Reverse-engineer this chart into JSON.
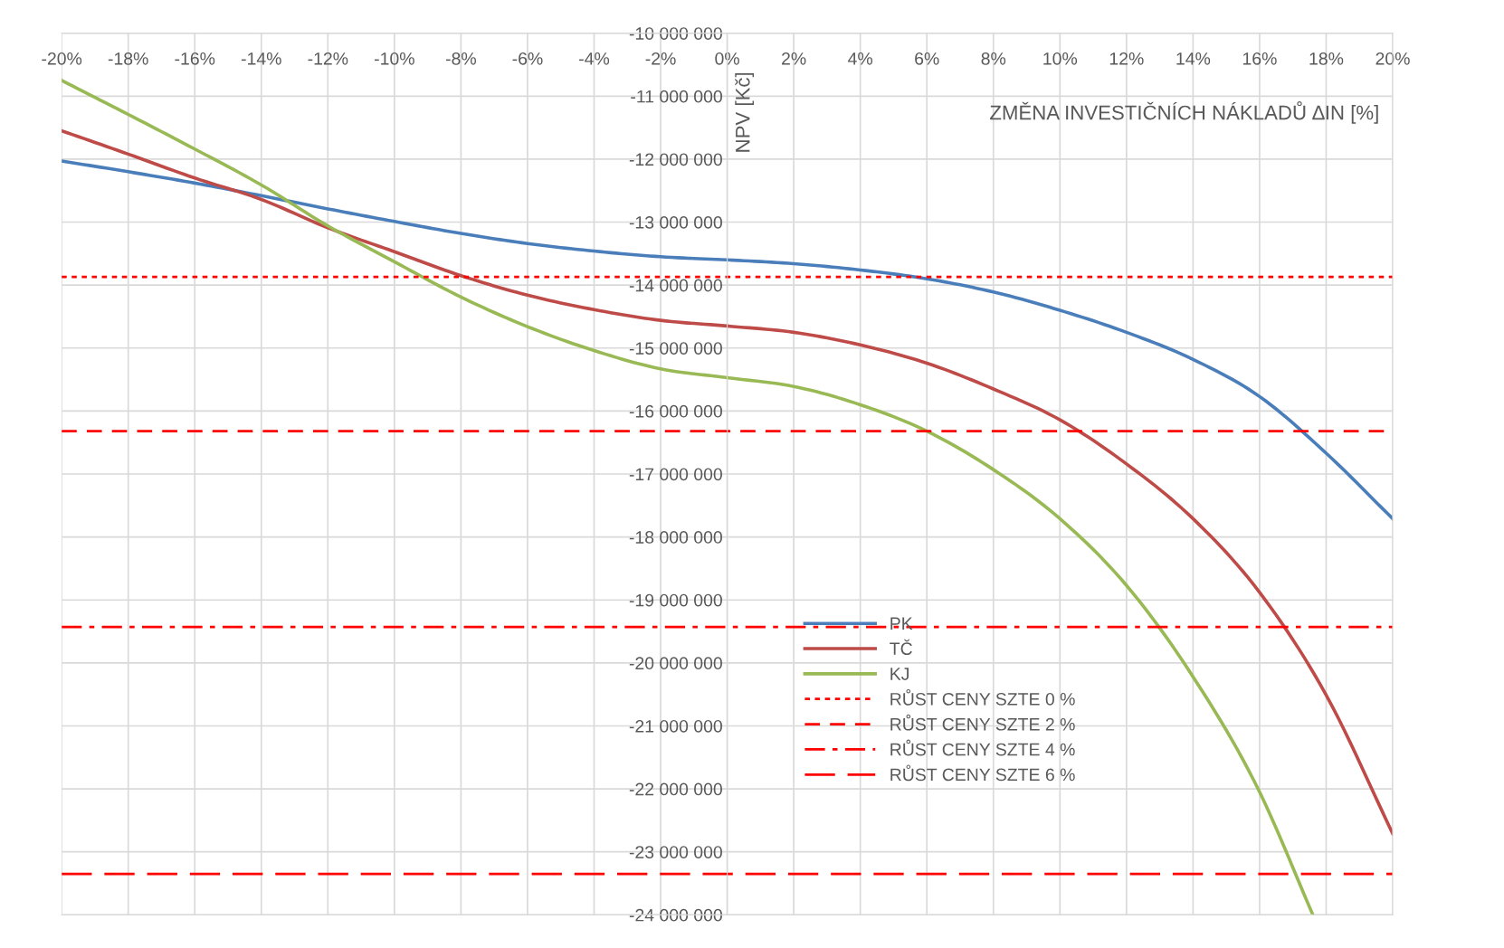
{
  "chart_data": {
    "type": "line",
    "xlabel": "ZMĚNA INVESTIČNÍCH NÁKLADŮ ∆IN [%]",
    "ylabel": "NPV [Kč]",
    "x": [
      -20,
      -18,
      -16,
      -14,
      -12,
      -10,
      -8,
      -6,
      -4,
      -2,
      0,
      2,
      4,
      6,
      8,
      10,
      12,
      14,
      16,
      18,
      20
    ],
    "series": [
      {
        "name": "PK",
        "color": "#4a7ebb",
        "values": [
          -12030000,
          -12200000,
          -12380000,
          -12580000,
          -12790000,
          -12990000,
          -13180000,
          -13340000,
          -13460000,
          -13550000,
          -13600000,
          -13660000,
          -13760000,
          -13900000,
          -14110000,
          -14400000,
          -14750000,
          -15180000,
          -15770000,
          -16670000,
          -17710000
        ]
      },
      {
        "name": "TČ",
        "color": "#be4b48",
        "values": [
          -11550000,
          -11920000,
          -12300000,
          -12640000,
          -13090000,
          -13470000,
          -13850000,
          -14160000,
          -14390000,
          -14560000,
          -14650000,
          -14750000,
          -14950000,
          -15240000,
          -15650000,
          -16140000,
          -16840000,
          -17710000,
          -18880000,
          -20510000,
          -22710000
        ]
      },
      {
        "name": "KJ",
        "color": "#98b954",
        "x": [
          -20,
          -18,
          -16,
          -14,
          -12,
          -10,
          -8,
          -6,
          -4,
          -2,
          0,
          2,
          4,
          6,
          8,
          10,
          12,
          14,
          16,
          17.6
        ],
        "values": [
          -10750000,
          -11290000,
          -11840000,
          -12410000,
          -13060000,
          -13630000,
          -14190000,
          -14660000,
          -15040000,
          -15330000,
          -15470000,
          -15610000,
          -15900000,
          -16320000,
          -16930000,
          -17710000,
          -18770000,
          -20220000,
          -22050000,
          -24000000
        ]
      }
    ],
    "ref_lines": [
      {
        "axis": "y",
        "value": -13870000,
        "label": "RŮST CENY SZTE 0 %",
        "color": "#ff0000",
        "line_style": "dotted"
      },
      {
        "axis": "y",
        "value": -16320000,
        "label": "RŮST CENY SZTE 2 %",
        "color": "#ff0000",
        "line_style": "dashed"
      },
      {
        "axis": "y",
        "value": -19430000,
        "label": "RŮST CENY SZTE 4 %",
        "color": "#ff0000",
        "line_style": "dashdot"
      },
      {
        "axis": "y",
        "value": -23350000,
        "label": "RŮST CENY SZTE 6 %",
        "color": "#ff0000",
        "line_style": "longdash"
      }
    ],
    "xlim": [
      -20,
      20
    ],
    "xticks": [
      {
        "value": -20,
        "label": "-20%"
      },
      {
        "value": -18,
        "label": "-18%"
      },
      {
        "value": -16,
        "label": "-16%"
      },
      {
        "value": -14,
        "label": "-14%"
      },
      {
        "value": -12,
        "label": "-12%"
      },
      {
        "value": -10,
        "label": "-10%"
      },
      {
        "value": -8,
        "label": "-8%"
      },
      {
        "value": -6,
        "label": "-6%"
      },
      {
        "value": -4,
        "label": "-4%"
      },
      {
        "value": -2,
        "label": "-2%"
      },
      {
        "value": 0,
        "label": "0%"
      },
      {
        "value": 2,
        "label": "2%"
      },
      {
        "value": 4,
        "label": "4%"
      },
      {
        "value": 6,
        "label": "6%"
      },
      {
        "value": 8,
        "label": "8%"
      },
      {
        "value": 10,
        "label": "10%"
      },
      {
        "value": 12,
        "label": "12%"
      },
      {
        "value": 14,
        "label": "14%"
      },
      {
        "value": 16,
        "label": "16%"
      },
      {
        "value": 18,
        "label": "18%"
      },
      {
        "value": 20,
        "label": "20%"
      }
    ],
    "ylim": [
      -24000000,
      -10000000
    ],
    "yticks": [
      {
        "value": -10000000,
        "label": "-10 000 000"
      },
      {
        "value": -11000000,
        "label": "-11 000 000"
      },
      {
        "value": -12000000,
        "label": "-12 000 000"
      },
      {
        "value": -13000000,
        "label": "-13 000 000"
      },
      {
        "value": -14000000,
        "label": "-14 000 000"
      },
      {
        "value": -15000000,
        "label": "-15 000 000"
      },
      {
        "value": -16000000,
        "label": "-16 000 000"
      },
      {
        "value": -17000000,
        "label": "-17 000 000"
      },
      {
        "value": -18000000,
        "label": "-18 000 000"
      },
      {
        "value": -19000000,
        "label": "-19 000 000"
      },
      {
        "value": -20000000,
        "label": "-20 000 000"
      },
      {
        "value": -21000000,
        "label": "-21 000 000"
      },
      {
        "value": -22000000,
        "label": "-22 000 000"
      },
      {
        "value": -23000000,
        "label": "-23 000 000"
      },
      {
        "value": -24000000,
        "label": "-24 000 000"
      }
    ],
    "grid": true,
    "legend": "bottom",
    "marker": "none",
    "line_style": "solid"
  }
}
